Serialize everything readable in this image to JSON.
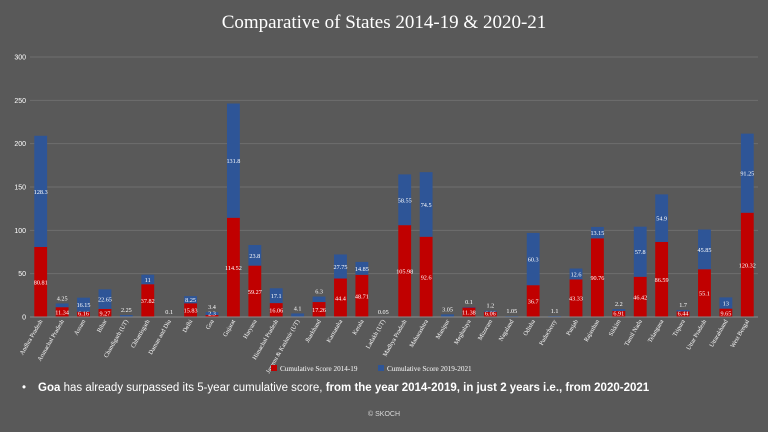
{
  "chart_data": {
    "type": "bar",
    "stacked": true,
    "title": "Comparative of States 2014-19 & 2020-21",
    "xlabel": "",
    "ylabel": "",
    "ylim": [
      0,
      300
    ],
    "yticks": [
      "0",
      "50",
      "100",
      "150",
      "200",
      "250",
      "300"
    ],
    "grid": true,
    "legend_position": "bottom",
    "categories": [
      "Andhra Pradesh",
      "Arunachal Pradesh",
      "Assam",
      "Bihar",
      "Chandigarh (UT)",
      "Chhattisgarh",
      "Daman and Diu",
      "Delhi",
      "Goa",
      "Gujarat",
      "Haryana",
      "Himachal Pradesh",
      "Jammu & Kashmir (UT)",
      "Jharkhand",
      "Karnataka",
      "Kerala",
      "Ladakh (UT)",
      "Madhya Pradesh",
      "Maharashtra",
      "Manipur",
      "Meghalaya",
      "Mizoram",
      "Nagaland",
      "Odisha",
      "Puducherry",
      "Punjab",
      "Rajasthan",
      "Sikkim",
      "Tamil Nadu",
      "Telangana",
      "Tripura",
      "Uttar Pradesh",
      "Uttarakhand",
      "West Bengal"
    ],
    "series": [
      {
        "name": "Cumulative Score 2014-19",
        "color": "#c00000",
        "values": [
          80.81,
          11.34,
          6.16,
          9.27,
          null,
          37.82,
          null,
          15.83,
          2.3,
          114.52,
          59.27,
          16.06,
          null,
          17.26,
          44.4,
          48.71,
          null,
          105.98,
          92.6,
          null,
          11.38,
          6.06,
          null,
          36.7,
          null,
          43.33,
          90.76,
          6.91,
          46.42,
          86.59,
          6.44,
          55.1,
          9.65,
          120.32
        ],
        "labels": [
          "80.81",
          "11.34",
          "6.16",
          "9.27",
          "",
          "37.82",
          "",
          "15.83",
          "2.3",
          "114.52",
          "59.27",
          "16.06",
          "",
          "17.26",
          "44.4",
          "48.71",
          "",
          "105.98",
          "92.6",
          "",
          "11.38",
          "6.06",
          "",
          "36.7",
          "",
          "43.33",
          "90.76",
          "6.91",
          "46.42",
          "86.59",
          "6.44",
          "55.1",
          "9.65",
          "120.32"
        ]
      },
      {
        "name": "Cumulative Score 2019-2021",
        "color": "#2e5597",
        "values": [
          128.3,
          4.25,
          16.15,
          22.65,
          2.25,
          11,
          0.1,
          8.25,
          3.4,
          131.8,
          23.8,
          17.1,
          4.1,
          6.3,
          27.75,
          14.85,
          0.05,
          58.55,
          74.5,
          3.05,
          0.1,
          1.2,
          1.05,
          60.3,
          1.1,
          12.6,
          13.15,
          2.2,
          57.8,
          54.9,
          1.7,
          45.85,
          13,
          91.25
        ],
        "labels": [
          "128.3",
          "4.25",
          "16.15",
          "22.65",
          "2.25",
          "11",
          "0.1",
          "8.25",
          "3.4",
          "131.8",
          "23.8",
          "17.1",
          "4.1",
          "6.3",
          "27.75",
          "14.85",
          "0.05",
          "58.55",
          "74.5",
          "3.05",
          "0.1",
          "1.2",
          "1.05",
          "60.3",
          "1.1",
          "12.6",
          "13.15",
          "2.2",
          "57.8",
          "54.9",
          "1.7",
          "45.85",
          "13",
          "91.25"
        ]
      }
    ]
  },
  "note": {
    "bullet": "•",
    "goa": "Goa",
    "part1": "has already surpassed its 5-year cumulative score,",
    "part2": "from the year 2014-2019,",
    "part3": "in just 2 years i.e., from 2020-2021"
  },
  "footer": "© SKOCH"
}
